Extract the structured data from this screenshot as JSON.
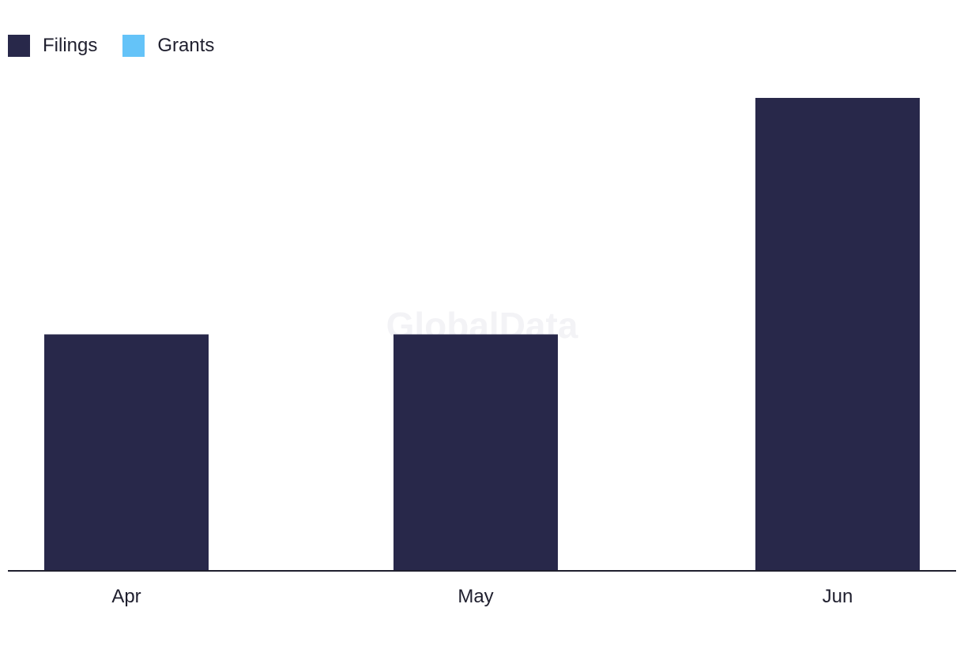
{
  "chart_data": {
    "type": "bar",
    "categories": [
      "Apr",
      "May",
      "Jun"
    ],
    "series": [
      {
        "name": "Filings",
        "values": [
          1,
          1,
          2
        ],
        "color": "#28284a"
      },
      {
        "name": "Grants",
        "values": [
          0,
          0,
          0
        ],
        "color": "#64c3f8"
      }
    ],
    "ylim": [
      0,
      2
    ],
    "grid": false,
    "legend_position": "top-left",
    "watermark": "GlobalData"
  }
}
